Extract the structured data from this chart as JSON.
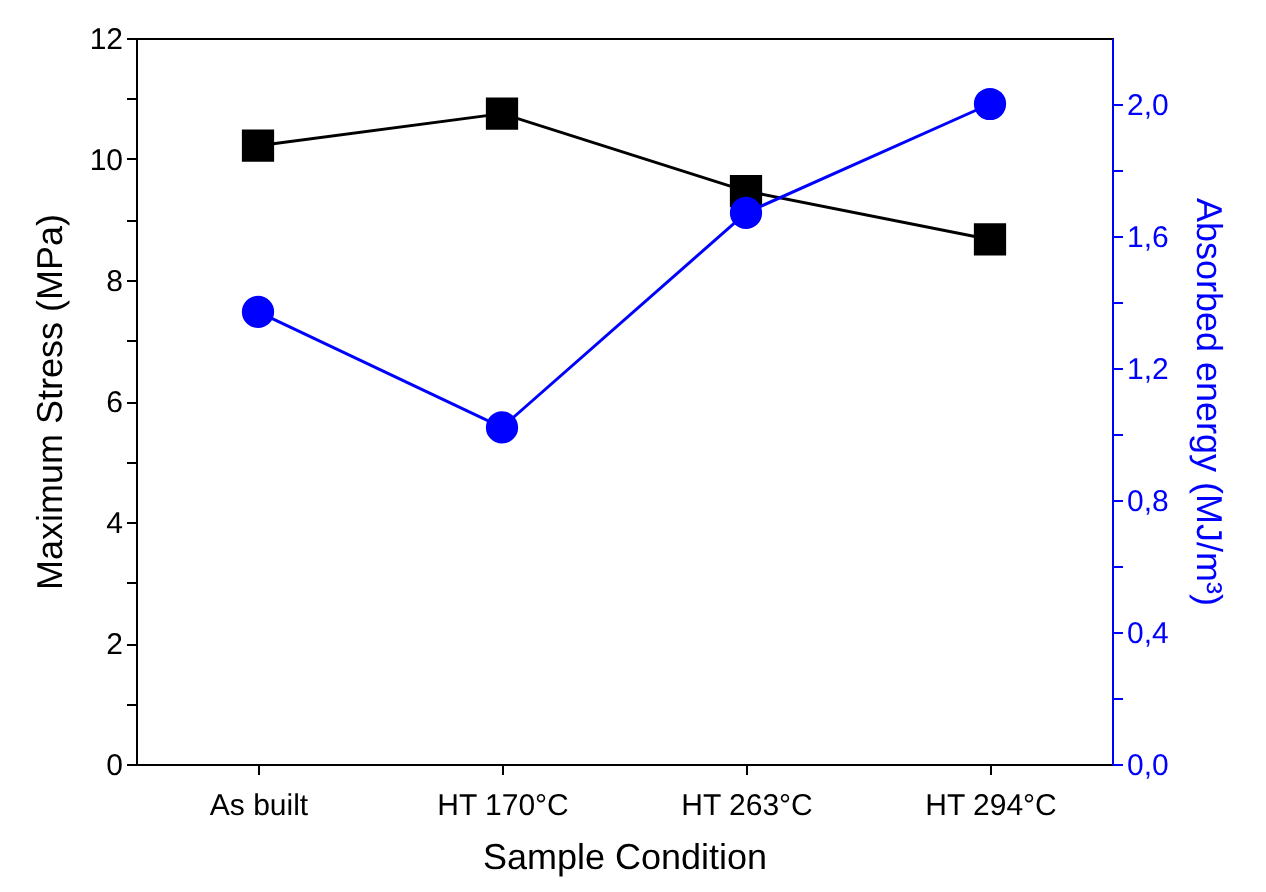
{
  "chart_data": {
    "type": "line",
    "xlabel": "Sample Condition",
    "ylabel": "Maximum Stress (MPa)",
    "y2label": "Absorbed energy (MJ/m³)",
    "categories": [
      "As built",
      "HT 170°C",
      "HT 263°C",
      "HT 294°C"
    ],
    "series": [
      {
        "color": "#000000",
        "marker": "square",
        "values": [
          10.22,
          10.75,
          9.47,
          8.67
        ]
      },
      {
        "color": "#0000ff",
        "marker": "circle",
        "axis": "y2",
        "values": [
          1.37,
          1.02,
          1.67,
          2.0
        ]
      }
    ],
    "ylim": [
      0,
      12
    ],
    "yticks": [
      0,
      {
        "value": 1,
        "label": null
      },
      2,
      {
        "value": 3,
        "label": null
      },
      4,
      {
        "value": 5,
        "label": null
      },
      6,
      {
        "value": 7,
        "label": null
      },
      8,
      {
        "value": 9,
        "label": null
      },
      10,
      {
        "value": 11,
        "label": null
      },
      12
    ],
    "y2lim": [
      0,
      2.2
    ],
    "y2ticks": [
      {
        "value": 0,
        "label": "0,0"
      },
      {
        "value": 0.2,
        "label": null
      },
      {
        "value": 0.4,
        "label": "0,4"
      },
      {
        "value": 0.6,
        "label": null
      },
      {
        "value": 0.8,
        "label": "0,8"
      },
      {
        "value": 1.0,
        "label": null
      },
      {
        "value": 1.2,
        "label": "1,2"
      },
      {
        "value": 1.4,
        "label": null
      },
      {
        "value": 1.6,
        "label": "1,6"
      },
      {
        "value": 1.8,
        "label": null
      },
      {
        "value": 2.0,
        "label": "2,0"
      }
    ],
    "grid": false
  }
}
